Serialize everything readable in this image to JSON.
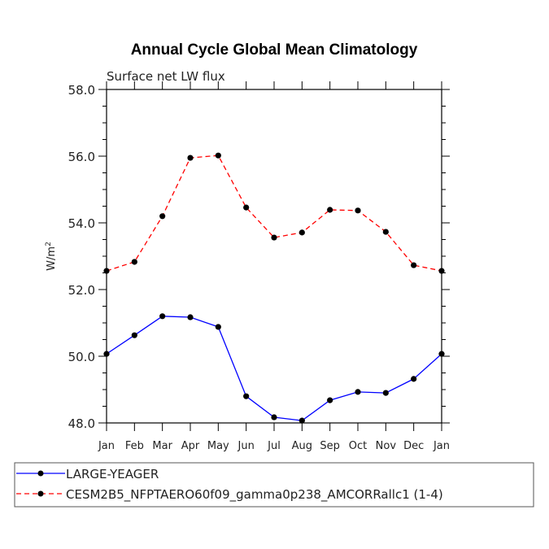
{
  "chart_data": {
    "type": "line",
    "title": "Annual Cycle Global Mean Climatology",
    "subtitle": "Surface net LW flux",
    "xlabel": "",
    "ylabel": "W/m",
    "ylabel_sup": "2",
    "ylim": [
      48.0,
      58.0
    ],
    "yticks": [
      "48.0",
      "50.0",
      "52.0",
      "54.0",
      "56.0",
      "58.0"
    ],
    "yticks_values": [
      48,
      50,
      52,
      54,
      56,
      58
    ],
    "categories": [
      "Jan",
      "Feb",
      "Mar",
      "Apr",
      "May",
      "Jun",
      "Jul",
      "Aug",
      "Sep",
      "Oct",
      "Nov",
      "Dec",
      "Jan"
    ],
    "grid": false,
    "legend_position": "bottom",
    "series": [
      {
        "name": "LARGE-YEAGER",
        "color": "#0000ff",
        "dash": "solid",
        "values": [
          50.07,
          50.63,
          51.2,
          51.17,
          50.88,
          48.8,
          48.17,
          48.07,
          48.68,
          48.93,
          48.9,
          49.32,
          50.07
        ]
      },
      {
        "name": "CESM2B5_NFPTAERO60f09_gamma0p238_AMCORRallc1 (1-4)",
        "color": "#ff0000",
        "dash": "dashed",
        "values": [
          52.56,
          52.83,
          54.2,
          55.95,
          56.02,
          54.46,
          53.56,
          53.71,
          54.39,
          54.37,
          53.73,
          52.73,
          52.56
        ]
      }
    ]
  }
}
